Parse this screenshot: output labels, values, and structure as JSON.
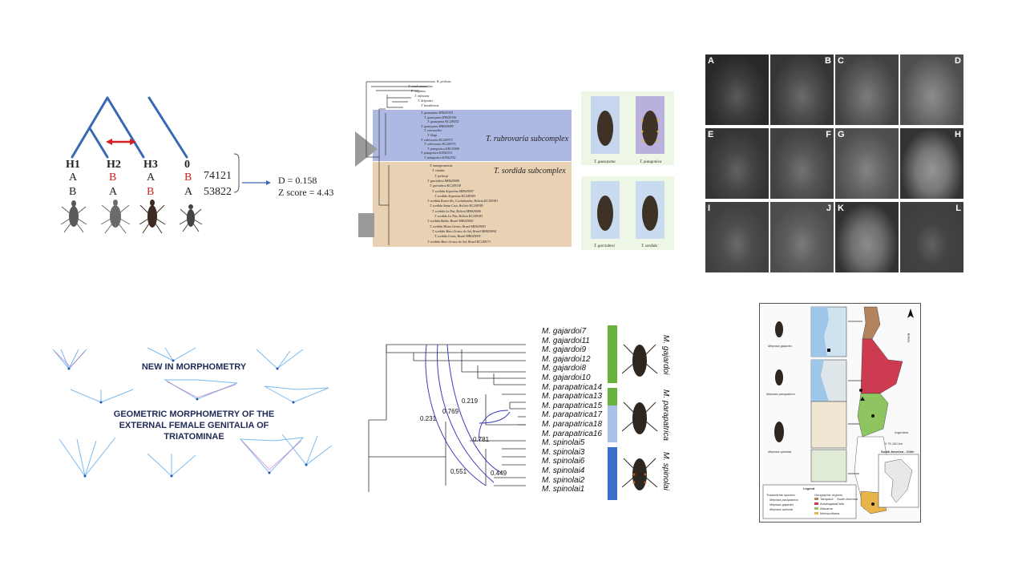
{
  "abba": {
    "headers": [
      "H1",
      "H2",
      "H3",
      "0"
    ],
    "row1": [
      "A",
      "B",
      "A",
      "B"
    ],
    "row2": [
      "B",
      "A",
      "B",
      "A"
    ],
    "count1": "74121",
    "count2": "53822",
    "d_stat": "D = 0.158",
    "z_stat": "Z score = 4.43"
  },
  "phylo": {
    "subcomplex1": "T. rubrovaria subcomplex",
    "subcomplex2": "T. sordida subcomplex",
    "taxa": [
      "R. prolixus",
      "T. sinaloamaculata",
      "P. megistus",
      "T. infestans",
      "T. delpontei",
      "T. brasiliensis",
      "T. guasayana MN629155",
      "T. guasayana MN629156",
      "T. guasayana KC249252",
      "T. guasayana MH029099",
      "T. carcavalloi",
      "T. klugi",
      "T. rubrovaria KC249373",
      "T. rubrovaria KC249375",
      "T. patagonica KR135998",
      "T. patagonica KJ842331",
      "T. patagonica KJ842352",
      "T. matogrossensis",
      "T. vandae",
      "T. jurbergi",
      "T. garciabesi MH029098",
      "T. garciabesi KC249338",
      "T. sordida Argentina MH029097",
      "T. sordida Argentina KC249383",
      "T. sordida Romerillo, Cochabamba, Bolivia KC249381",
      "T. sordida Santa Cruz, Bolivia KC249385",
      "T. sordida La Paz, Bolivia MH029096",
      "T. sordida La Paz, Bolivia KC249383",
      "T. sordida Bahia, Brazil MH029092",
      "T. sordida Minas Gerais, Brazil MH029093",
      "T. sordida Mato Grosso do Sul, Brazil MH029094",
      "T. sordida Goias, Brazil MH029095",
      "T. sordida Mato Grosso do Sul, Brazil KC249371"
    ],
    "species_captions": [
      "T. guasayana",
      "T. patagonica",
      "T. garciabesi",
      "T. sordida"
    ]
  },
  "sem": {
    "tiles": [
      "A",
      "B",
      "C",
      "D",
      "E",
      "F",
      "G",
      "H",
      "I",
      "J",
      "K",
      "L"
    ]
  },
  "banner": {
    "line1": "NEW IN MORPHOMETRY",
    "line2": "GEOMETRIC MORPHOMETRY OF THE",
    "line3": "EXTERNAL FEMALE GENITALIA OF",
    "line4": "TRIATOMINAE"
  },
  "tree": {
    "tips": [
      "M. gajardoi7",
      "M. gajardoi11",
      "M. gajardoi9",
      "M. gajardoi12",
      "M. gajardoi8",
      "M. gajardoi10",
      "M. parapatrica14",
      "M. parapatrica13",
      "M. parapatrica15",
      "M. parapatrica17",
      "M. parapatrica18",
      "M. parapatrica16",
      "M. spinolai5",
      "M. spinolai3",
      "M. spinolai6",
      "M. spinolai4",
      "M. spinolai2",
      "M. spinolai1"
    ],
    "gammas": [
      "0.219",
      "0.769",
      "0.231",
      "0.781",
      "0.449",
      "0,551"
    ],
    "species": [
      "M. gajardoi",
      "M. parapatrica",
      "M. spinolai"
    ],
    "colors": {
      "gajardoi": "#6ab23e",
      "parapatrica": "#6ab23e",
      "spinolai": "#3b6fc8"
    }
  },
  "map": {
    "captions": [
      "Mepraia gajardoi",
      "Mepraia parapatrica",
      "Mepraia spinolai"
    ],
    "countries": [
      "Bolivia",
      "Argentina"
    ],
    "inset_title": "South America - Chile",
    "scale": "0  75  150 km",
    "legend_title": "Legend",
    "legend_species_head": "Triatominae species",
    "legend_species": [
      "Mepraia parapatrica",
      "Mepraia gajardoi",
      "Mepraia spinolai"
    ],
    "legend_regions_head": "Geographic regions",
    "legend_regions": [
      "Tarapacá",
      "Antofagasta",
      "Atacama",
      "Metropolitana"
    ],
    "legend_extra": [
      "South America",
      "Chile"
    ]
  }
}
